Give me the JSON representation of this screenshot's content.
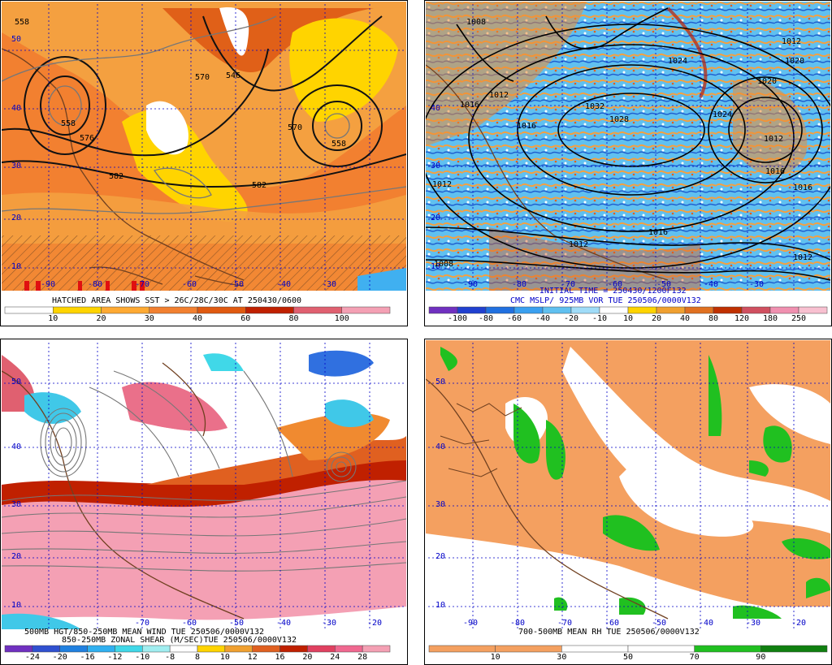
{
  "panels": [
    {
      "id": "p1",
      "captions": [
        "HATCHED AREA SHOWS SST > 26C/28C/30C AT 250430/0600"
      ],
      "colorbar": {
        "labels": [
          "10",
          "20",
          "30",
          "40",
          "60",
          "80",
          "100"
        ],
        "colors": [
          "#ffffff",
          "#ffd400",
          "#ffaa33",
          "#f28030",
          "#e05a10",
          "#c02000",
          "#e06070",
          "#f4a0b4"
        ]
      },
      "lat_labels": [
        "50",
        "40",
        "30",
        "20",
        "10"
      ],
      "lon_labels": [
        "-90",
        "-80",
        "-70",
        "-60",
        "-50",
        "-40",
        "-30"
      ],
      "contour_labels": [
        "558",
        "576",
        "546",
        "558",
        "570",
        "582",
        "558",
        "582",
        "570"
      ]
    },
    {
      "id": "p2",
      "captions": [
        "INITIAL TIME = 250430/1200F132",
        "CMC MSLP/ 925MB VOR TUE 250506/0000V132"
      ],
      "colorbar": {
        "labels": [
          "-100",
          "-80",
          "-60",
          "-40",
          "-20",
          "-10",
          "10",
          "20",
          "40",
          "80",
          "120",
          "180",
          "250"
        ],
        "colors": [
          "#7030c0",
          "#2040d0",
          "#2070e0",
          "#3aa0f0",
          "#60c0f0",
          "#a0dcf8",
          "#ffffff",
          "#ffd400",
          "#f0a030",
          "#e07020",
          "#c03000",
          "#d05060",
          "#f090b0",
          "#f8c0d0"
        ]
      },
      "lat_labels": [
        "40",
        "30",
        "20",
        "10"
      ],
      "lon_labels": [
        "-90",
        "-80",
        "-70",
        "-60",
        "-50",
        "-40",
        "-30"
      ],
      "contour_labels": [
        "1008",
        "1012",
        "1024",
        "1028",
        "1032",
        "1016",
        "1012",
        "1016",
        "1020",
        "1024",
        "1016",
        "1020",
        "1012",
        "1016",
        "1012",
        "1016",
        "1012",
        "1008",
        "1012"
      ]
    },
    {
      "id": "p3",
      "captions": [
        "500MB HGT/850-250MB MEAN WIND TUE 250506/0000V132",
        "850-250MB ZONAL SHEAR (M/SEC)TUE 250506/0000V132"
      ],
      "colorbar": {
        "labels": [
          "-24",
          "-20",
          "-16",
          "-12",
          "-10",
          "-8",
          "8",
          "10",
          "12",
          "16",
          "20",
          "24",
          "28"
        ],
        "colors": [
          "#7030c0",
          "#3050d0",
          "#2080e0",
          "#30b0f0",
          "#40d8e8",
          "#a0eef0",
          "#ffffff",
          "#ffd400",
          "#f0a030",
          "#e06020",
          "#c02000",
          "#e04060",
          "#f06890",
          "#f4a0b4"
        ]
      },
      "lat_labels": [
        "50",
        "40",
        "30",
        "20",
        "10"
      ],
      "lon_labels": [
        "-70",
        "-60",
        "-50",
        "-40",
        "-30",
        "-20"
      ]
    },
    {
      "id": "p4",
      "captions": [
        "700-500MB MEAN RH TUE 250506/0000V132"
      ],
      "colorbar": {
        "labels": [
          "10",
          "30",
          "50",
          "70",
          "90"
        ],
        "colors": [
          "#f4a060",
          "#f4a060",
          "#ffffff",
          "#ffffff",
          "#20c020",
          "#108010"
        ]
      },
      "lat_labels": [
        "50",
        "40",
        "30",
        "20",
        "10"
      ],
      "lon_labels": [
        "-90",
        "-80",
        "-70",
        "-60",
        "-50",
        "-40",
        "-30",
        "-20"
      ]
    }
  ]
}
